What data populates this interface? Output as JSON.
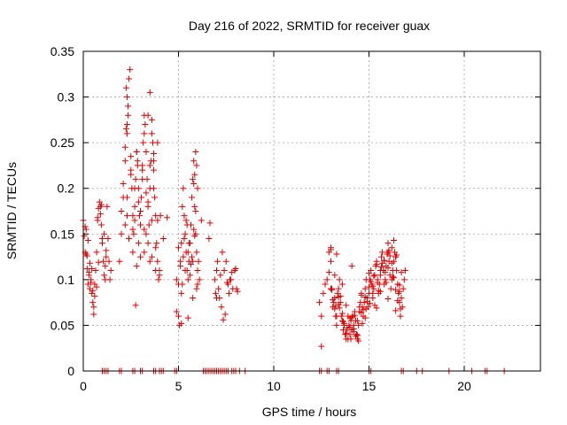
{
  "chart_data": {
    "type": "scatter",
    "title": "Day 216 of 2022, SRMTID for receiver guax",
    "xlabel": "GPS time / hours",
    "ylabel": "SRMTID / TECUs",
    "xlim": [
      0,
      24
    ],
    "ylim": [
      0,
      0.35
    ],
    "x_ticks": [
      0,
      5,
      10,
      15,
      20
    ],
    "x_tick_labels": [
      "0",
      "5",
      "10",
      "15",
      "20"
    ],
    "y_ticks": [
      0,
      0.05,
      0.1,
      0.15,
      0.2,
      0.25,
      0.3,
      0.35
    ],
    "y_tick_labels": [
      "0",
      "0.05",
      "0.1",
      "0.15",
      "0.2",
      "0.25",
      "0.3",
      "0.35"
    ],
    "grid": true,
    "marker": "+",
    "marker_color": "#e00000",
    "series": [
      {
        "name": "SRMTID",
        "x": [
          0.0,
          0.05,
          0.1,
          0.15,
          0.2,
          0.25,
          0.3,
          0.35,
          0.4,
          0.45,
          0.5,
          0.55,
          0.6,
          0.65,
          0.7,
          0.75,
          0.8,
          0.85,
          0.9,
          0.95,
          1.0,
          1.05,
          1.1,
          1.15,
          1.2,
          1.25,
          1.3,
          1.35,
          1.4,
          1.45,
          0.1,
          0.2,
          0.3,
          0.4,
          0.5,
          0.6,
          0.7,
          0.8,
          0.9,
          1.0,
          1.1,
          1.2,
          0.15,
          0.35,
          0.55,
          0.75,
          0.95,
          1.15,
          0.25,
          0.45,
          1.9,
          2.0,
          2.1,
          2.2,
          2.3,
          2.35,
          2.4,
          2.45,
          2.5,
          2.55,
          2.6,
          2.65,
          2.7,
          2.75,
          2.8,
          2.85,
          2.9,
          2.95,
          3.0,
          3.05,
          3.1,
          3.15,
          3.2,
          3.25,
          3.3,
          3.35,
          3.4,
          3.45,
          3.5,
          3.55,
          3.6,
          3.65,
          3.7,
          3.75,
          3.8,
          3.85,
          3.9,
          3.95,
          4.0,
          4.05,
          2.0,
          2.2,
          2.4,
          2.6,
          2.8,
          3.0,
          3.2,
          3.4,
          3.6,
          3.8,
          4.0,
          2.1,
          2.3,
          2.5,
          2.7,
          2.9,
          3.1,
          3.3,
          3.5,
          3.7,
          3.9,
          2.2,
          2.5,
          2.8,
          3.1,
          3.4,
          3.7,
          2.3,
          2.6,
          2.9,
          3.2,
          3.5,
          3.8,
          2.4,
          2.7,
          3.0,
          3.3,
          3.6,
          2.25,
          2.3,
          2.35,
          2.25,
          2.3,
          3.5,
          3.4,
          3.2,
          3.6,
          3.7,
          2.85,
          2.75,
          3.9,
          4.4,
          4.2,
          4.9,
          5.0,
          5.05,
          5.1,
          5.15,
          5.2,
          5.25,
          5.3,
          5.35,
          5.4,
          5.45,
          5.5,
          5.55,
          5.6,
          5.65,
          5.7,
          5.75,
          5.8,
          5.85,
          5.9,
          5.95,
          6.0,
          6.05,
          6.1,
          5.0,
          5.1,
          5.2,
          5.3,
          5.4,
          5.5,
          5.6,
          5.7,
          5.8,
          5.9,
          6.0,
          5.15,
          5.35,
          5.55,
          5.75,
          5.95,
          5.25,
          5.45,
          5.65,
          5.85,
          4.9,
          5.0,
          5.15,
          5.5,
          5.75,
          5.8,
          5.85,
          5.9,
          5.95,
          6.0,
          6.2,
          6.9,
          7.0,
          7.05,
          7.1,
          7.15,
          7.2,
          7.3,
          7.4,
          7.5,
          7.6,
          7.7,
          7.8,
          7.95,
          8.0,
          8.05,
          8.1,
          6.95,
          7.25,
          7.35,
          7.45,
          7.55,
          7.65,
          7.75,
          7.85,
          6.6,
          6.65,
          7.0,
          12.4,
          12.5,
          12.6,
          12.7,
          12.8,
          12.9,
          13.0,
          13.05,
          13.1,
          13.15,
          13.2,
          13.25,
          13.3,
          13.35,
          13.4,
          13.45,
          13.5,
          13.55,
          13.6,
          13.65,
          13.7,
          13.75,
          13.8,
          13.85,
          13.9,
          13.95,
          14.0,
          14.05,
          14.1,
          14.15,
          14.2,
          14.25,
          14.3,
          14.35,
          14.4,
          14.45,
          14.5,
          14.55,
          14.6,
          14.65,
          14.7,
          14.75,
          14.8,
          14.85,
          14.9,
          14.95,
          15.0,
          15.05,
          15.1,
          15.15,
          15.2,
          15.25,
          15.3,
          15.35,
          15.4,
          15.45,
          15.5,
          15.55,
          15.6,
          15.65,
          15.7,
          15.75,
          15.8,
          15.85,
          15.9,
          15.95,
          16.0,
          16.05,
          16.1,
          16.15,
          16.2,
          16.25,
          16.3,
          16.35,
          16.4,
          16.45,
          16.5,
          16.55,
          16.6,
          16.65,
          16.7,
          16.75,
          16.8,
          16.85,
          16.9,
          12.9,
          13.0,
          13.1,
          13.2,
          13.3,
          13.4,
          13.5,
          13.6,
          13.7,
          13.8,
          13.9,
          14.0,
          14.1,
          14.2,
          14.3,
          14.4,
          14.5,
          14.6,
          14.7,
          14.8,
          14.9,
          15.0,
          15.1,
          15.2,
          15.3,
          15.4,
          15.5,
          15.6,
          15.7,
          15.8,
          15.9,
          16.0,
          16.1,
          16.2,
          16.3,
          16.4,
          16.5,
          16.6,
          16.7,
          13.0,
          13.2,
          13.4,
          13.6,
          13.8,
          14.0,
          14.2,
          14.4,
          14.6,
          14.8,
          15.0,
          15.2,
          15.4,
          15.6,
          15.8,
          16.0,
          16.2,
          16.4,
          16.6,
          13.05,
          13.25,
          13.45,
          13.65,
          13.85,
          14.05,
          14.25,
          14.45,
          14.65,
          14.85,
          15.05,
          15.25,
          15.45,
          15.65,
          15.85,
          16.05,
          16.25,
          16.45,
          16.65,
          12.5,
          13.0,
          13.3,
          14.1,
          16.0,
          16.3,
          16.4,
          1.0,
          1.1,
          1.2,
          1.3,
          1.9,
          2.0,
          2.6,
          2.7,
          3.0,
          3.1,
          3.7,
          3.8,
          4.0,
          4.1,
          4.2,
          4.8,
          4.9,
          6.3,
          6.4,
          6.5,
          6.6,
          6.7,
          6.8,
          6.9,
          7.0,
          7.1,
          7.2,
          7.3,
          7.4,
          7.5,
          7.6,
          7.8,
          7.9,
          8.0,
          8.2,
          8.5,
          12.4,
          12.5,
          12.8,
          12.9,
          13.3,
          13.4,
          15.0,
          15.1,
          16.7,
          16.8,
          17.5,
          17.8,
          19.2,
          20.4,
          21.1,
          21.2,
          22.1
        ],
        "y": [
          0.165,
          0.148,
          0.13,
          0.155,
          0.112,
          0.095,
          0.105,
          0.09,
          0.1,
          0.085,
          0.075,
          0.07,
          0.095,
          0.11,
          0.13,
          0.165,
          0.178,
          0.185,
          0.172,
          0.16,
          0.14,
          0.12,
          0.105,
          0.115,
          0.125,
          0.18,
          0.145,
          0.12,
          0.1,
          0.11,
          0.158,
          0.126,
          0.108,
          0.097,
          0.088,
          0.082,
          0.092,
          0.119,
          0.18,
          0.145,
          0.15,
          0.132,
          0.128,
          0.118,
          0.062,
          0.168,
          0.182,
          0.1,
          0.143,
          0.112,
          0.12,
          0.15,
          0.19,
          0.23,
          0.26,
          0.29,
          0.32,
          0.33,
          0.22,
          0.2,
          0.17,
          0.15,
          0.18,
          0.21,
          0.24,
          0.23,
          0.2,
          0.17,
          0.16,
          0.19,
          0.22,
          0.25,
          0.28,
          0.27,
          0.24,
          0.21,
          0.18,
          0.16,
          0.2,
          0.23,
          0.26,
          0.25,
          0.22,
          0.19,
          0.17,
          0.14,
          0.12,
          0.1,
          0.11,
          0.17,
          0.175,
          0.16,
          0.145,
          0.13,
          0.115,
          0.125,
          0.155,
          0.14,
          0.165,
          0.135,
          0.105,
          0.205,
          0.19,
          0.215,
          0.2,
          0.185,
          0.21,
          0.195,
          0.225,
          0.23,
          0.165,
          0.245,
          0.235,
          0.24,
          0.225,
          0.185,
          0.2,
          0.17,
          0.155,
          0.14,
          0.13,
          0.12,
          0.11,
          0.145,
          0.165,
          0.175,
          0.15,
          0.125,
          0.31,
          0.3,
          0.28,
          0.265,
          0.27,
          0.305,
          0.28,
          0.26,
          0.275,
          0.238,
          0.225,
          0.072,
          0.25,
          0.168,
          0.145,
          0.065,
          0.06,
          0.05,
          0.12,
          0.14,
          0.18,
          0.2,
          0.17,
          0.15,
          0.13,
          0.11,
          0.1,
          0.12,
          0.14,
          0.16,
          0.19,
          0.21,
          0.23,
          0.18,
          0.15,
          0.13,
          0.11,
          0.12,
          0.1,
          0.135,
          0.115,
          0.095,
          0.145,
          0.165,
          0.13,
          0.105,
          0.125,
          0.155,
          0.175,
          0.095,
          0.085,
          0.11,
          0.14,
          0.08,
          0.09,
          0.125,
          0.16,
          0.117,
          0.148,
          0.1,
          0.095,
          0.052,
          0.058,
          0.12,
          0.205,
          0.215,
          0.24,
          0.225,
          0.2,
          0.165,
          0.1,
          0.11,
          0.12,
          0.09,
          0.08,
          0.105,
          0.13,
          0.11,
          0.12,
          0.095,
          0.1,
          0.108,
          0.11,
          0.112,
          0.09,
          0.087,
          0.085,
          0.07,
          0.056,
          0.062,
          0.097,
          0.085,
          0.1,
          0.09,
          0.145,
          0.162,
          0.08,
          0.075,
          0.06,
          0.085,
          0.095,
          0.1,
          0.13,
          0.12,
          0.09,
          0.07,
          0.075,
          0.08,
          0.06,
          0.05,
          0.085,
          0.09,
          0.1,
          0.075,
          0.06,
          0.055,
          0.045,
          0.05,
          0.04,
          0.035,
          0.045,
          0.06,
          0.05,
          0.04,
          0.055,
          0.045,
          0.06,
          0.05,
          0.065,
          0.055,
          0.04,
          0.035,
          0.05,
          0.065,
          0.075,
          0.085,
          0.07,
          0.06,
          0.075,
          0.09,
          0.1,
          0.08,
          0.07,
          0.085,
          0.1,
          0.11,
          0.095,
          0.08,
          0.09,
          0.105,
          0.115,
          0.12,
          0.1,
          0.085,
          0.095,
          0.11,
          0.125,
          0.13,
          0.11,
          0.095,
          0.1,
          0.115,
          0.128,
          0.13,
          0.12,
          0.105,
          0.09,
          0.1,
          0.11,
          0.12,
          0.13,
          0.125,
          0.11,
          0.095,
          0.085,
          0.075,
          0.06,
          0.08,
          0.07,
          0.09,
          0.1,
          0.11,
          0.108,
          0.09,
          0.078,
          0.068,
          0.06,
          0.073,
          0.082,
          0.063,
          0.052,
          0.041,
          0.035,
          0.048,
          0.059,
          0.046,
          0.038,
          0.055,
          0.07,
          0.083,
          0.067,
          0.058,
          0.076,
          0.092,
          0.098,
          0.085,
          0.072,
          0.069,
          0.088,
          0.105,
          0.118,
          0.121,
          0.097,
          0.113,
          0.126,
          0.118,
          0.102,
          0.089,
          0.077,
          0.094,
          0.108,
          0.133,
          0.105,
          0.081,
          0.095,
          0.072,
          0.058,
          0.043,
          0.039,
          0.064,
          0.081,
          0.107,
          0.093,
          0.117,
          0.087,
          0.121,
          0.079,
          0.135,
          0.066,
          0.087,
          0.089,
          0.071,
          0.069,
          0.054,
          0.047,
          0.035,
          0.061,
          0.033,
          0.052,
          0.068,
          0.074,
          0.104,
          0.097,
          0.114,
          0.108,
          0.132,
          0.103,
          0.127,
          0.068,
          0.027,
          0.135,
          0.128,
          0.115,
          0.14,
          0.143,
          0.125,
          0,
          0,
          0,
          0,
          0,
          0,
          0,
          0,
          0,
          0,
          0,
          0,
          0,
          0,
          0,
          0,
          0,
          0,
          0,
          0,
          0,
          0,
          0,
          0,
          0,
          0,
          0,
          0,
          0,
          0,
          0,
          0,
          0,
          0,
          0,
          0,
          0,
          0,
          0,
          0,
          0,
          0,
          0,
          0,
          0,
          0,
          0,
          0,
          0,
          0,
          0,
          0,
          0
        ]
      }
    ]
  }
}
